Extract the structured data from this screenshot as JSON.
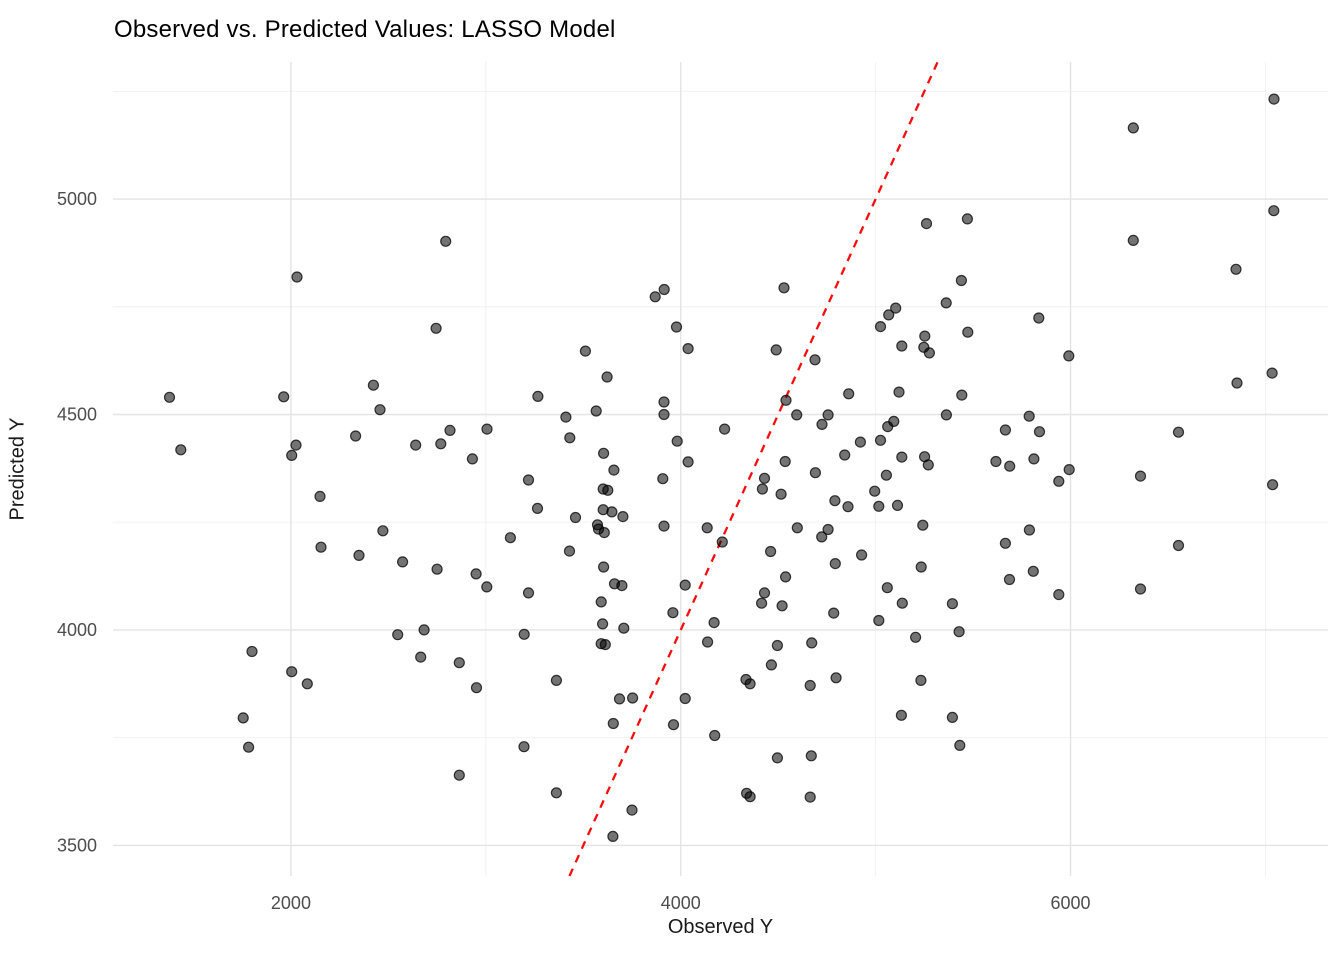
{
  "header": {
    "title": "Observed vs. Predicted Values: LASSO Model"
  },
  "chart_data": {
    "type": "scatter",
    "title": "Observed vs. Predicted Values: LASSO Model",
    "xlabel": "Observed Y",
    "ylabel": "Predicted Y",
    "x_ticks": [
      2000,
      4000,
      6000
    ],
    "y_ticks": [
      3500,
      4000,
      4500,
      5000
    ],
    "x_minor_gridlines": [
      3000,
      5000,
      7000
    ],
    "y_minor_gridlines": [
      3750,
      4250,
      4750,
      5250
    ],
    "x_domain": [
      1087,
      7321
    ],
    "y_domain": [
      3429,
      5318
    ],
    "grid": true,
    "legend_position": "none",
    "background_color": "#FFFFFF",
    "major_grid_color": "#E4E4E4",
    "minor_grid_color": "#F0F0F0",
    "tick_label_color": "#4D4D4D",
    "point_style": {
      "radius": 5,
      "fill": "#000000",
      "fill_opacity": 0.55,
      "stroke": "#000000",
      "stroke_opacity": 0.75,
      "stroke_width": 1.2
    },
    "identity_line": {
      "name": "y-equals-x-reference",
      "style": "dashed",
      "color": "#F80D0D",
      "width": 2.3,
      "dash": "8 7",
      "from": 3429,
      "to": 5318
    },
    "points": [
      [
        1377,
        4540
      ],
      [
        1963,
        4541
      ],
      [
        2423,
        4568
      ],
      [
        2457,
        4511
      ],
      [
        1435,
        4418
      ],
      [
        2026,
        4429
      ],
      [
        2004,
        4405
      ],
      [
        2332,
        4450
      ],
      [
        2640,
        4429
      ],
      [
        2769,
        4432
      ],
      [
        2816,
        4463
      ],
      [
        3006,
        4466
      ],
      [
        2931,
        4397
      ],
      [
        2149,
        4310
      ],
      [
        2472,
        4230
      ],
      [
        2154,
        4192
      ],
      [
        2349,
        4173
      ],
      [
        2573,
        4158
      ],
      [
        2750,
        4141
      ],
      [
        2950,
        4130
      ],
      [
        3005,
        4100
      ],
      [
        3126,
        4214
      ],
      [
        2794,
        4902
      ],
      [
        2031,
        4819
      ],
      [
        2745,
        4700
      ],
      [
        1800,
        3950
      ],
      [
        2004,
        3903
      ],
      [
        2084,
        3875
      ],
      [
        2548,
        3989
      ],
      [
        2683,
        4000
      ],
      [
        2666,
        3937
      ],
      [
        2864,
        3924
      ],
      [
        2952,
        3866
      ],
      [
        1755,
        3796
      ],
      [
        1783,
        3728
      ],
      [
        2864,
        3663
      ],
      [
        3869,
        4773
      ],
      [
        3915,
        4790
      ],
      [
        3978,
        4703
      ],
      [
        4530,
        4794
      ],
      [
        5067,
        4731
      ],
      [
        5103,
        4747
      ],
      [
        5025,
        4704
      ],
      [
        5261,
        4943
      ],
      [
        3511,
        4647
      ],
      [
        4038,
        4653
      ],
      [
        4490,
        4650
      ],
      [
        4689,
        4627
      ],
      [
        3622,
        4587
      ],
      [
        3267,
        4542
      ],
      [
        3566,
        4508
      ],
      [
        3914,
        4529
      ],
      [
        3914,
        4500
      ],
      [
        3411,
        4494
      ],
      [
        4540,
        4533
      ],
      [
        4862,
        4548
      ],
      [
        5120,
        4552
      ],
      [
        4595,
        4499
      ],
      [
        4756,
        4499
      ],
      [
        4725,
        4477
      ],
      [
        4225,
        4466
      ],
      [
        3431,
        4446
      ],
      [
        3982,
        4438
      ],
      [
        4922,
        4436
      ],
      [
        5025,
        4440
      ],
      [
        5062,
        4472
      ],
      [
        5093,
        4484
      ],
      [
        3604,
        4410
      ],
      [
        3657,
        4371
      ],
      [
        4038,
        4390
      ],
      [
        4536,
        4391
      ],
      [
        4841,
        4406
      ],
      [
        4691,
        4365
      ],
      [
        5055,
        4359
      ],
      [
        3219,
        4348
      ],
      [
        3908,
        4351
      ],
      [
        4430,
        4352
      ],
      [
        4419,
        4327
      ],
      [
        3602,
        4327
      ],
      [
        3626,
        4324
      ],
      [
        4515,
        4315
      ],
      [
        4995,
        4322
      ],
      [
        4791,
        4300
      ],
      [
        4858,
        4286
      ],
      [
        5016,
        4287
      ],
      [
        5112,
        4289
      ],
      [
        3265,
        4282
      ],
      [
        3460,
        4261
      ],
      [
        3602,
        4279
      ],
      [
        3647,
        4274
      ],
      [
        3703,
        4263
      ],
      [
        3573,
        4244
      ],
      [
        3578,
        4234
      ],
      [
        3608,
        4226
      ],
      [
        3914,
        4241
      ],
      [
        4136,
        4237
      ],
      [
        4213,
        4204
      ],
      [
        4598,
        4237
      ],
      [
        4723,
        4216
      ],
      [
        4756,
        4233
      ],
      [
        3429,
        4183
      ],
      [
        4461,
        4182
      ],
      [
        4793,
        4154
      ],
      [
        4928,
        4174
      ],
      [
        3604,
        4146
      ],
      [
        3660,
        4107
      ],
      [
        3698,
        4103
      ],
      [
        4023,
        4104
      ],
      [
        4538,
        4123
      ],
      [
        5060,
        4098
      ],
      [
        3219,
        4086
      ],
      [
        3592,
        4065
      ],
      [
        4430,
        4086
      ],
      [
        4415,
        4062
      ],
      [
        4520,
        4056
      ],
      [
        5242,
        4243
      ],
      [
        5134,
        4401
      ],
      [
        5251,
        4402
      ],
      [
        5270,
        4383
      ],
      [
        5252,
        4682
      ],
      [
        5247,
        4656
      ],
      [
        5276,
        4643
      ],
      [
        5134,
        4659
      ],
      [
        5234,
        4146
      ],
      [
        5137,
        4062
      ],
      [
        5016,
        4022
      ],
      [
        4785,
        4039
      ],
      [
        3960,
        4040
      ],
      [
        7044,
        5232
      ],
      [
        6322,
        5165
      ],
      [
        7043,
        4973
      ],
      [
        5471,
        4954
      ],
      [
        6322,
        4904
      ],
      [
        6849,
        4837
      ],
      [
        5440,
        4811
      ],
      [
        5362,
        4759
      ],
      [
        5837,
        4724
      ],
      [
        5473,
        4691
      ],
      [
        5991,
        4636
      ],
      [
        7034,
        4596
      ],
      [
        6854,
        4573
      ],
      [
        5442,
        4545
      ],
      [
        5363,
        4499
      ],
      [
        5788,
        4496
      ],
      [
        5666,
        4464
      ],
      [
        5841,
        4460
      ],
      [
        6554,
        4459
      ],
      [
        5617,
        4391
      ],
      [
        5688,
        4380
      ],
      [
        5812,
        4397
      ],
      [
        5993,
        4372
      ],
      [
        5940,
        4345
      ],
      [
        6359,
        4357
      ],
      [
        7037,
        4337
      ],
      [
        5789,
        4232
      ],
      [
        5666,
        4201
      ],
      [
        6554,
        4196
      ],
      [
        5809,
        4136
      ],
      [
        5687,
        4117
      ],
      [
        5940,
        4082
      ],
      [
        6359,
        4095
      ],
      [
        5394,
        4061
      ],
      [
        3197,
        3990
      ],
      [
        3599,
        4014
      ],
      [
        3708,
        4004
      ],
      [
        3592,
        3968
      ],
      [
        3613,
        3966
      ],
      [
        4171,
        4017
      ],
      [
        4138,
        3972
      ],
      [
        4496,
        3964
      ],
      [
        4672,
        3970
      ],
      [
        4465,
        3919
      ],
      [
        4335,
        3885
      ],
      [
        4356,
        3875
      ],
      [
        4664,
        3871
      ],
      [
        4797,
        3889
      ],
      [
        5205,
        3983
      ],
      [
        5232,
        3883
      ],
      [
        5132,
        3802
      ],
      [
        3362,
        3883
      ],
      [
        3686,
        3840
      ],
      [
        3753,
        3842
      ],
      [
        4023,
        3841
      ],
      [
        3654,
        3783
      ],
      [
        3963,
        3780
      ],
      [
        4174,
        3755
      ],
      [
        3196,
        3729
      ],
      [
        4496,
        3703
      ],
      [
        4670,
        3708
      ],
      [
        3362,
        3622
      ],
      [
        4338,
        3621
      ],
      [
        4356,
        3613
      ],
      [
        4664,
        3612
      ],
      [
        3750,
        3582
      ],
      [
        3652,
        3521
      ],
      [
        5428,
        3996
      ],
      [
        5394,
        3797
      ],
      [
        5432,
        3732
      ]
    ]
  }
}
